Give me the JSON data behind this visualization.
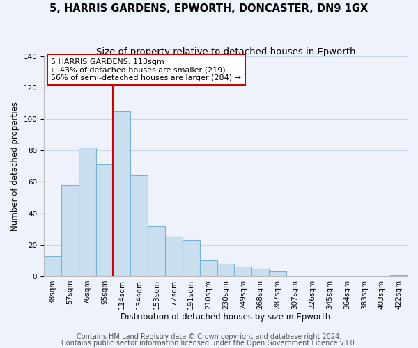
{
  "title": "5, HARRIS GARDENS, EPWORTH, DONCASTER, DN9 1GX",
  "subtitle": "Size of property relative to detached houses in Epworth",
  "xlabel": "Distribution of detached houses by size in Epworth",
  "ylabel": "Number of detached properties",
  "categories": [
    "38sqm",
    "57sqm",
    "76sqm",
    "95sqm",
    "114sqm",
    "134sqm",
    "153sqm",
    "172sqm",
    "191sqm",
    "210sqm",
    "230sqm",
    "249sqm",
    "268sqm",
    "287sqm",
    "307sqm",
    "326sqm",
    "345sqm",
    "364sqm",
    "383sqm",
    "403sqm",
    "422sqm"
  ],
  "values": [
    13,
    58,
    82,
    71,
    105,
    64,
    32,
    25,
    23,
    10,
    8,
    6,
    5,
    3,
    0,
    0,
    0,
    0,
    0,
    0,
    1
  ],
  "bar_color": "#c9dff0",
  "bar_edge_color": "#7ab0d4",
  "highlight_line_color": "#cc0000",
  "ylim": [
    0,
    140
  ],
  "yticks": [
    0,
    20,
    40,
    60,
    80,
    100,
    120,
    140
  ],
  "annotation_text": "5 HARRIS GARDENS: 113sqm\n← 43% of detached houses are smaller (219)\n56% of semi-detached houses are larger (284) →",
  "annotation_box_color": "#ffffff",
  "annotation_box_edge": "#cc0000",
  "footer_line1": "Contains HM Land Registry data © Crown copyright and database right 2024.",
  "footer_line2": "Contains public sector information licensed under the Open Government Licence v3.0.",
  "background_color": "#eef2fb",
  "grid_color": "#c8d4e8",
  "title_fontsize": 10.5,
  "subtitle_fontsize": 9.5,
  "axis_label_fontsize": 8.5,
  "tick_fontsize": 7.5,
  "footer_fontsize": 7.0
}
